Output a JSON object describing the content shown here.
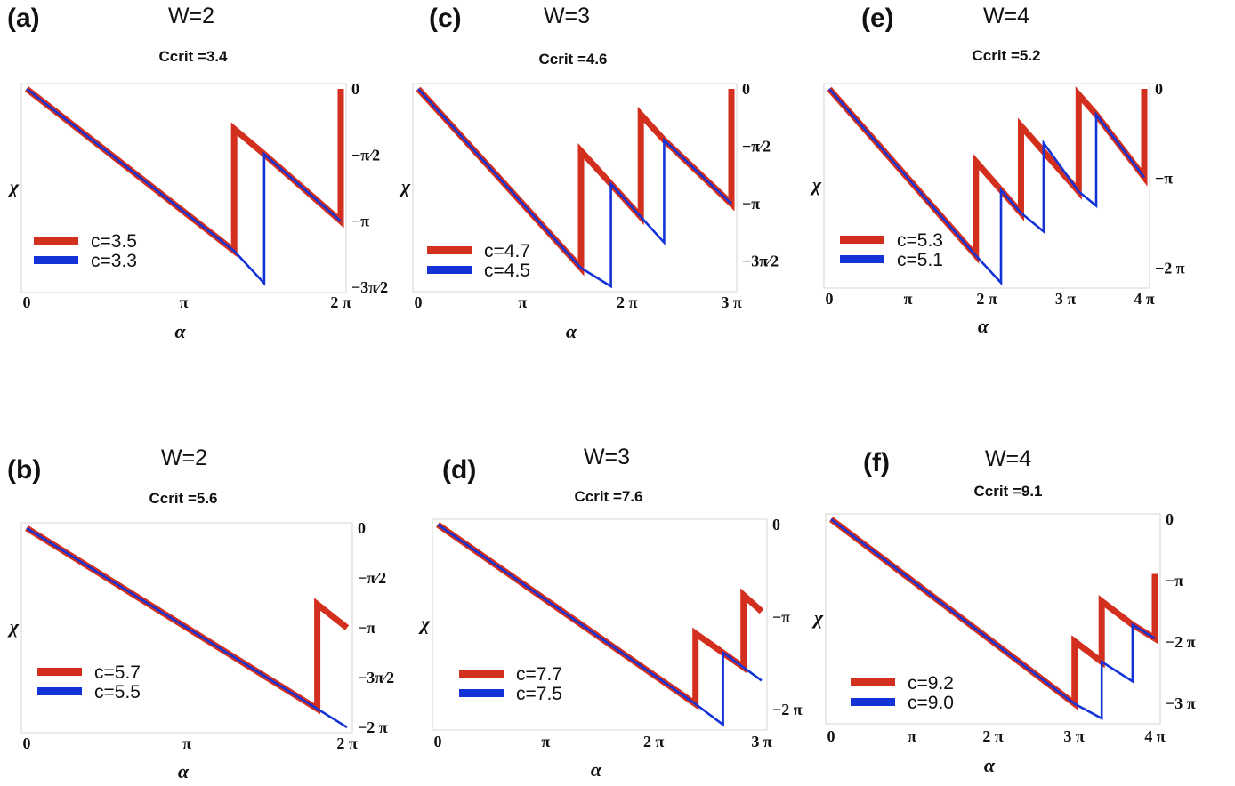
{
  "chart_data": [
    {
      "type": "line",
      "panel": "(a)",
      "title": "W=2",
      "subtitle": "Ccrit =3.4",
      "xlabel": "α",
      "ylabel": "χ",
      "xlim": [
        0,
        6.2832
      ],
      "ylim": [
        -4.712,
        0
      ],
      "xticks": [
        {
          "v": 0,
          "label": "0"
        },
        {
          "v": 3.1416,
          "label": "π"
        },
        {
          "v": 6.2832,
          "label": "2 π"
        }
      ],
      "yticks": [
        {
          "v": 0,
          "label": "0"
        },
        {
          "v": -1.5708,
          "label": "−π⁄2"
        },
        {
          "v": -3.1416,
          "label": "−π"
        },
        {
          "v": -4.712,
          "label": "−3π⁄2"
        }
      ],
      "series": [
        {
          "name": "c=3.5",
          "color": "#d32f1e",
          "x": [
            0,
            4.15,
            4.15,
            4.75,
            6.2832,
            6.2832
          ],
          "y": [
            0,
            -3.85,
            -0.95,
            -1.55,
            -3.1416,
            0
          ]
        },
        {
          "name": "c=3.3",
          "color": "#1433d6",
          "x": [
            0,
            4.15,
            4.75,
            4.75,
            6.2832
          ],
          "y": [
            0,
            -3.85,
            -4.62,
            -1.55,
            -3.1416
          ]
        }
      ]
    },
    {
      "type": "line",
      "panel": "(b)",
      "title": "W=2",
      "subtitle": "Ccrit =5.6",
      "xlabel": "α",
      "ylabel": "χ",
      "xlim": [
        0,
        6.2832
      ],
      "ylim": [
        -6.2832,
        0
      ],
      "xticks": [
        {
          "v": 0,
          "label": "0"
        },
        {
          "v": 3.1416,
          "label": "π"
        },
        {
          "v": 6.2832,
          "label": "2 π"
        }
      ],
      "yticks": [
        {
          "v": 0,
          "label": "0"
        },
        {
          "v": -1.5708,
          "label": "−π⁄2"
        },
        {
          "v": -3.1416,
          "label": "−π"
        },
        {
          "v": -4.712,
          "label": "−3π⁄2"
        },
        {
          "v": -6.2832,
          "label": "−2 π"
        }
      ],
      "series": [
        {
          "name": "c=5.7",
          "color": "#d32f1e",
          "x": [
            0,
            5.7,
            5.7,
            6.2832
          ],
          "y": [
            0,
            -5.7,
            -2.4,
            -3.1416
          ]
        },
        {
          "name": "c=5.5",
          "color": "#1433d6",
          "x": [
            0,
            6.2832
          ],
          "y": [
            0,
            -6.2832
          ]
        }
      ]
    },
    {
      "type": "line",
      "panel": "(c)",
      "title": "W=3",
      "subtitle": "Ccrit =4.6",
      "xlabel": "α",
      "ylabel": "χ",
      "xlim": [
        0,
        9.4248
      ],
      "ylim": [
        -5.4,
        0
      ],
      "xticks": [
        {
          "v": 0,
          "label": "0"
        },
        {
          "v": 3.1416,
          "label": "π"
        },
        {
          "v": 6.2832,
          "label": "2 π"
        },
        {
          "v": 9.4248,
          "label": "3 π"
        }
      ],
      "yticks": [
        {
          "v": 0,
          "label": "0"
        },
        {
          "v": -1.5708,
          "label": "−π⁄2"
        },
        {
          "v": -3.1416,
          "label": "−π"
        },
        {
          "v": -4.712,
          "label": "−3π⁄2"
        }
      ],
      "series": [
        {
          "name": "c=4.7",
          "color": "#d32f1e",
          "x": [
            0,
            4.9,
            4.9,
            5.8,
            6.7,
            6.7,
            7.4,
            9.4248,
            9.4248
          ],
          "y": [
            0,
            -4.9,
            -1.7,
            -2.6,
            -3.5,
            -0.7,
            -1.4,
            -3.1416,
            0
          ]
        },
        {
          "name": "c=4.5",
          "color": "#1433d6",
          "x": [
            0,
            4.9,
            5.8,
            5.8,
            6.7,
            7.4,
            7.4,
            9.4248
          ],
          "y": [
            0,
            -4.9,
            -5.4,
            -2.6,
            -3.5,
            -4.2,
            -1.4,
            -3.1416
          ]
        }
      ]
    },
    {
      "type": "line",
      "panel": "(d)",
      "title": "W=3",
      "subtitle": "Ccrit =7.6",
      "xlabel": "α",
      "ylabel": "χ",
      "xlim": [
        0,
        9.4248
      ],
      "ylim": [
        -6.8,
        0
      ],
      "xticks": [
        {
          "v": 0,
          "label": "0"
        },
        {
          "v": 3.1416,
          "label": "π"
        },
        {
          "v": 6.2832,
          "label": "2 π"
        },
        {
          "v": 9.4248,
          "label": "3 π"
        }
      ],
      "yticks": [
        {
          "v": 0,
          "label": "0"
        },
        {
          "v": -3.1416,
          "label": "−π"
        },
        {
          "v": -6.2832,
          "label": "−2 π"
        }
      ],
      "series": [
        {
          "name": "c=7.7",
          "color": "#d32f1e",
          "x": [
            0,
            7.5,
            7.5,
            8.9,
            8.9,
            9.4248
          ],
          "y": [
            0,
            -6.1,
            -3.7,
            -4.85,
            -2.4,
            -2.95
          ]
        },
        {
          "name": "c=7.5",
          "color": "#1433d6",
          "x": [
            0,
            7.5,
            8.3,
            8.3,
            9.4248
          ],
          "y": [
            0,
            -6.1,
            -6.8,
            -4.35,
            -5.3
          ]
        }
      ]
    },
    {
      "type": "line",
      "panel": "(e)",
      "title": "W=4",
      "subtitle": "Ccrit =5.2",
      "xlabel": "α",
      "ylabel": "χ",
      "xlim": [
        0,
        12.566
      ],
      "ylim": [
        -6.8,
        0
      ],
      "xticks": [
        {
          "v": 0,
          "label": "0"
        },
        {
          "v": 3.1416,
          "label": "π"
        },
        {
          "v": 6.2832,
          "label": "2 π"
        },
        {
          "v": 9.4248,
          "label": "3 π"
        },
        {
          "v": 12.566,
          "label": "4 π"
        }
      ],
      "yticks": [
        {
          "v": 0,
          "label": "0"
        },
        {
          "v": -3.1416,
          "label": "−π"
        },
        {
          "v": -6.2832,
          "label": "−2 π"
        }
      ],
      "series": [
        {
          "name": "c=5.3",
          "color": "#d32f1e",
          "x": [
            0,
            5.85,
            5.85,
            6.85,
            7.65,
            7.65,
            8.55,
            9.95,
            9.95,
            10.65,
            12.566,
            12.566
          ],
          "y": [
            0,
            -5.85,
            -2.55,
            -3.55,
            -4.35,
            -1.3,
            -2.2,
            -3.6,
            -0.2,
            -0.9,
            -3.1,
            0
          ]
        },
        {
          "name": "c=5.1",
          "color": "#1433d6",
          "x": [
            0,
            5.85,
            6.85,
            6.85,
            7.65,
            8.55,
            8.55,
            9.95,
            10.65,
            10.65,
            12.566
          ],
          "y": [
            0,
            -5.85,
            -6.8,
            -3.55,
            -4.35,
            -5.0,
            -1.9,
            -3.6,
            -4.1,
            -0.9,
            -3.1
          ]
        }
      ]
    },
    {
      "type": "line",
      "panel": "(f)",
      "title": "W=4",
      "subtitle": "Ccrit =9.1",
      "xlabel": "α",
      "ylabel": "χ",
      "xlim": [
        0,
        12.566
      ],
      "ylim": [
        -10.2,
        0
      ],
      "xticks": [
        {
          "v": 0,
          "label": "0"
        },
        {
          "v": 3.1416,
          "label": "π"
        },
        {
          "v": 6.2832,
          "label": "2 π"
        },
        {
          "v": 9.4248,
          "label": "3 π"
        },
        {
          "v": 12.566,
          "label": "4 π"
        }
      ],
      "yticks": [
        {
          "v": 0,
          "label": "0"
        },
        {
          "v": -3.1416,
          "label": "−π"
        },
        {
          "v": -6.2832,
          "label": "−2 π"
        },
        {
          "v": -9.4248,
          "label": "−3 π"
        }
      ],
      "series": [
        {
          "name": "c=9.2",
          "color": "#d32f1e",
          "x": [
            0,
            9.45,
            9.45,
            10.5,
            10.5,
            11.7,
            12.566,
            12.566
          ],
          "y": [
            0,
            -9.45,
            -6.25,
            -7.3,
            -4.2,
            -5.4,
            -6.1,
            -2.8
          ]
        },
        {
          "name": "c=9.0",
          "color": "#1433d6",
          "x": [
            0,
            9.45,
            10.5,
            10.5,
            11.7,
            11.7,
            12.566
          ],
          "y": [
            0,
            -9.45,
            -10.2,
            -7.3,
            -8.3,
            -5.4,
            -6.1
          ]
        }
      ]
    }
  ]
}
